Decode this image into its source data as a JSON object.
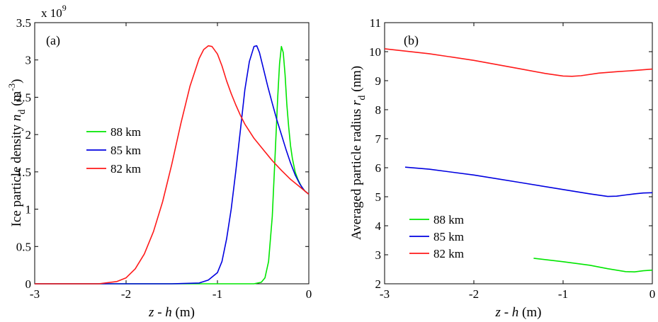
{
  "chart_data": [
    {
      "type": "line",
      "panel_label": "(a)",
      "xlabel_parts": [
        "z",
        " - ",
        "h",
        " (m)"
      ],
      "ylabel_parts": [
        "Ice particle density ",
        "n",
        "d",
        " (m",
        "-3",
        ")"
      ],
      "exponent_label": "x 10",
      "exponent_power": "9",
      "xlim": [
        -3,
        0
      ],
      "ylim": [
        0,
        3.5
      ],
      "yscale": 1000000000,
      "xticks": [
        -3,
        -2,
        -1,
        0
      ],
      "xtick_labels": [
        "-3",
        "-2",
        "-1",
        "0"
      ],
      "yticks": [
        0,
        0.5,
        1,
        1.5,
        2,
        2.5,
        3,
        3.5
      ],
      "ytick_labels": [
        "0",
        "0.5",
        "1",
        "1.5",
        "2",
        "2.5",
        "3",
        "3.5"
      ],
      "legend_position": "center-left",
      "series": [
        {
          "name": "88 km",
          "color": "#00e600",
          "x": [
            -3,
            -1.0,
            -0.6,
            -0.52,
            -0.48,
            -0.44,
            -0.4,
            -0.37,
            -0.34,
            -0.32,
            -0.3,
            -0.28,
            -0.26,
            -0.24,
            -0.22,
            -0.2,
            -0.18,
            -0.15,
            -0.12,
            -0.08,
            -0.04,
            0
          ],
          "y": [
            0.0,
            0.0,
            0.0,
            0.02,
            0.08,
            0.3,
            0.9,
            1.7,
            2.5,
            2.95,
            3.18,
            3.1,
            2.8,
            2.4,
            2.1,
            1.85,
            1.68,
            1.5,
            1.4,
            1.3,
            1.24,
            1.2
          ]
        },
        {
          "name": "85 km",
          "color": "#0000e0",
          "x": [
            -3,
            -1.5,
            -1.2,
            -1.1,
            -1.0,
            -0.95,
            -0.9,
            -0.85,
            -0.8,
            -0.75,
            -0.7,
            -0.65,
            -0.6,
            -0.57,
            -0.54,
            -0.5,
            -0.45,
            -0.4,
            -0.35,
            -0.3,
            -0.25,
            -0.2,
            -0.15,
            -0.1,
            -0.05,
            0
          ],
          "y": [
            0.0,
            0.0,
            0.01,
            0.05,
            0.15,
            0.3,
            0.6,
            1.0,
            1.5,
            2.05,
            2.6,
            2.98,
            3.18,
            3.19,
            3.1,
            2.9,
            2.65,
            2.42,
            2.2,
            2.0,
            1.8,
            1.62,
            1.46,
            1.34,
            1.25,
            1.2
          ]
        },
        {
          "name": "82 km",
          "color": "#ff1a1a",
          "x": [
            -3,
            -2.3,
            -2.1,
            -2.0,
            -1.9,
            -1.8,
            -1.7,
            -1.6,
            -1.5,
            -1.4,
            -1.3,
            -1.2,
            -1.15,
            -1.1,
            -1.06,
            -1.0,
            -0.95,
            -0.9,
            -0.85,
            -0.8,
            -0.75,
            -0.7,
            -0.6,
            -0.5,
            -0.4,
            -0.3,
            -0.2,
            -0.1,
            0
          ],
          "y": [
            0.0,
            0.0,
            0.03,
            0.08,
            0.2,
            0.4,
            0.7,
            1.1,
            1.6,
            2.15,
            2.65,
            3.02,
            3.14,
            3.19,
            3.18,
            3.08,
            2.92,
            2.72,
            2.55,
            2.4,
            2.26,
            2.14,
            1.95,
            1.8,
            1.65,
            1.52,
            1.4,
            1.3,
            1.2
          ]
        }
      ]
    },
    {
      "type": "line",
      "panel_label": "(b)",
      "xlabel_parts": [
        "z",
        " - ",
        "h",
        " (m)"
      ],
      "ylabel_parts": [
        "Averaged particle radius ",
        "r",
        "d",
        " (nm)"
      ],
      "xlim": [
        -3,
        0
      ],
      "ylim": [
        2,
        11
      ],
      "xticks": [
        -3,
        -2,
        -1,
        0
      ],
      "xtick_labels": [
        "-3",
        "-2",
        "-1",
        "0"
      ],
      "yticks": [
        2,
        3,
        4,
        5,
        6,
        7,
        8,
        9,
        10,
        11
      ],
      "ytick_labels": [
        "2",
        "3",
        "4",
        "5",
        "6",
        "7",
        "8",
        "9",
        "10",
        "11"
      ],
      "legend_position": "lower-left",
      "series": [
        {
          "name": "88 km",
          "color": "#00e600",
          "x": [
            -1.33,
            -1.0,
            -0.7,
            -0.5,
            -0.3,
            -0.2,
            -0.1,
            0
          ],
          "y": [
            2.88,
            2.76,
            2.64,
            2.52,
            2.42,
            2.41,
            2.45,
            2.47
          ]
        },
        {
          "name": "85 km",
          "color": "#0000e0",
          "x": [
            -2.77,
            -2.5,
            -2.0,
            -1.5,
            -1.0,
            -0.7,
            -0.5,
            -0.4,
            -0.3,
            -0.2,
            -0.1,
            0
          ],
          "y": [
            6.02,
            5.95,
            5.75,
            5.5,
            5.25,
            5.1,
            5.01,
            5.02,
            5.06,
            5.1,
            5.13,
            5.14
          ]
        },
        {
          "name": "82 km",
          "color": "#ff1a1a",
          "x": [
            -3,
            -2.5,
            -2.0,
            -1.5,
            -1.2,
            -1.0,
            -0.9,
            -0.8,
            -0.6,
            -0.4,
            -0.2,
            0
          ],
          "y": [
            10.1,
            9.93,
            9.7,
            9.42,
            9.25,
            9.16,
            9.15,
            9.17,
            9.26,
            9.31,
            9.35,
            9.4
          ]
        }
      ]
    }
  ]
}
